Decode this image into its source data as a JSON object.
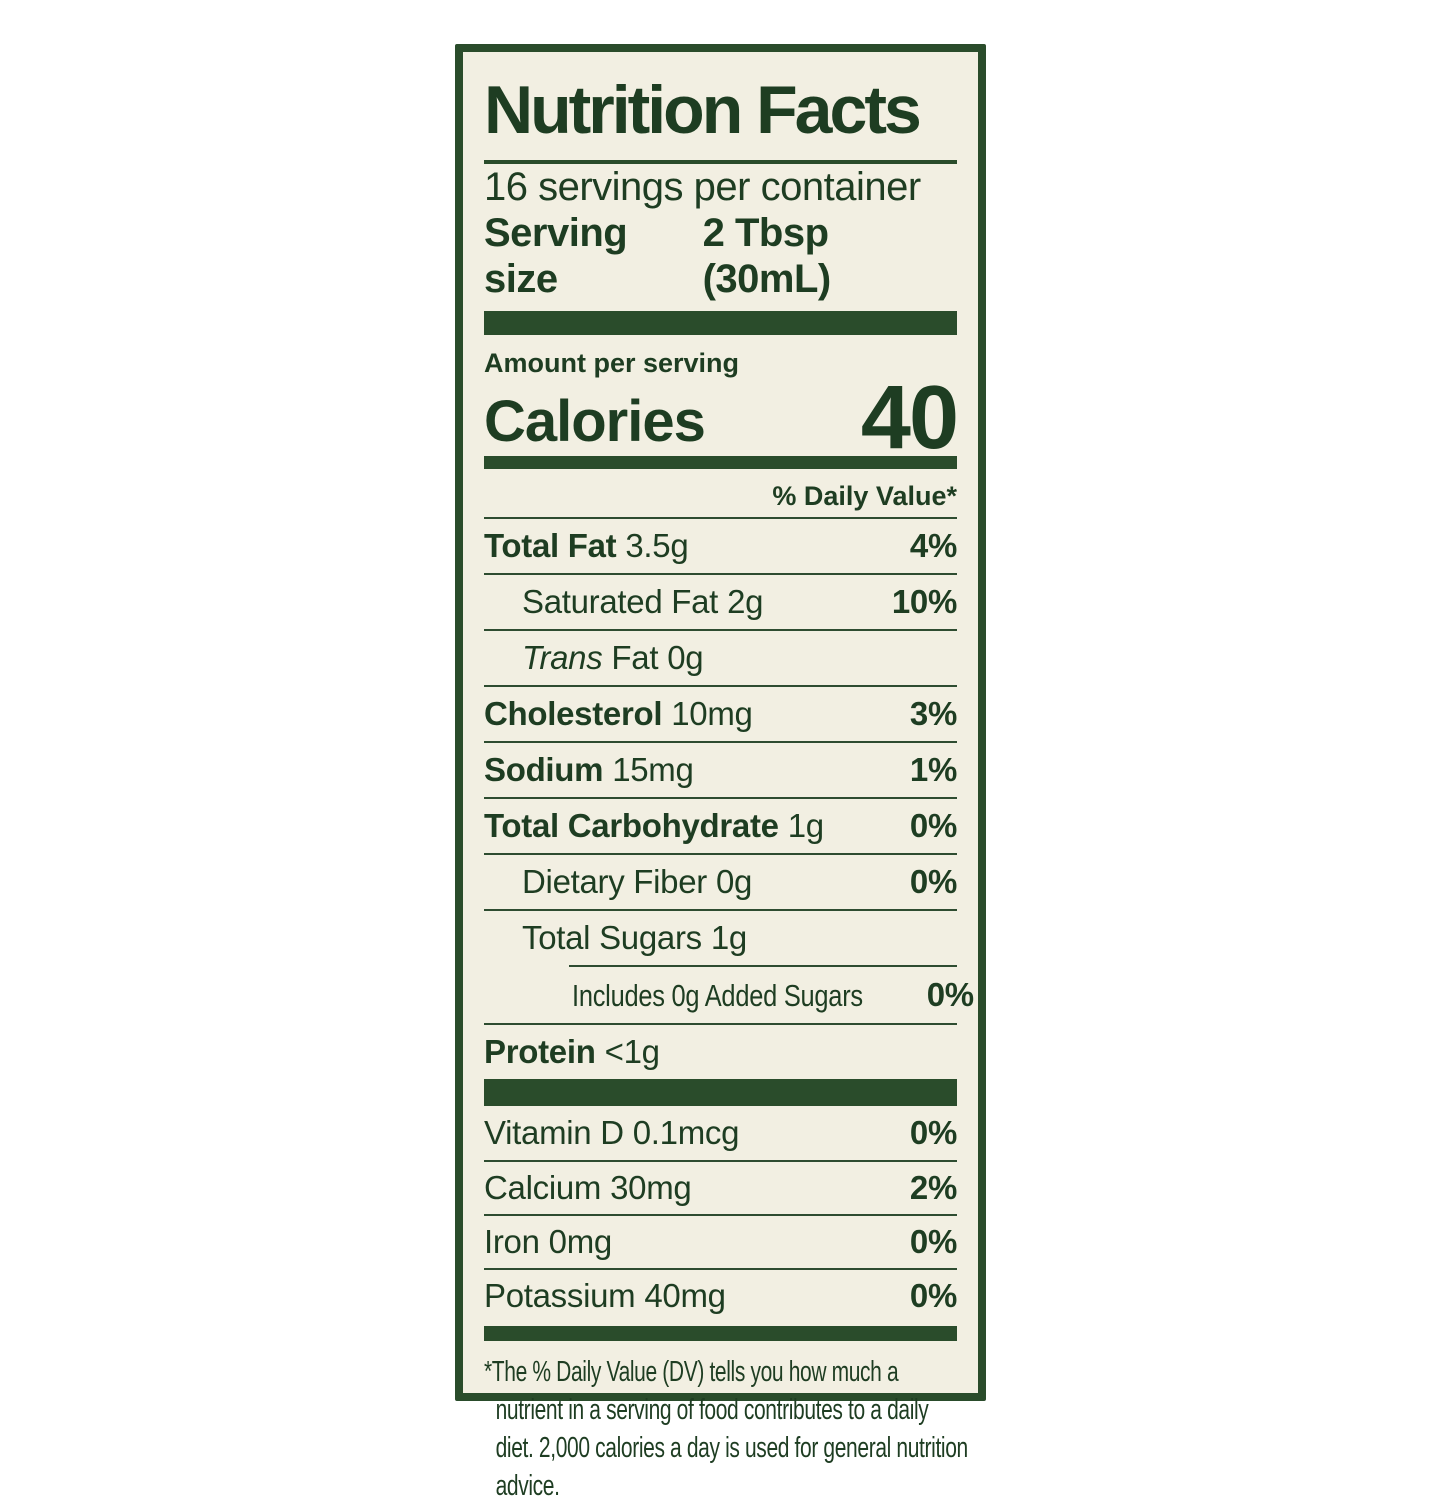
{
  "label": {
    "title": "Nutrition Facts",
    "servings_per_container": "16 servings per container",
    "serving_size_label": "Serving size",
    "serving_size_value": "2 Tbsp (30mL)",
    "amount_per_serving": "Amount per serving",
    "calories_label": "Calories",
    "calories_value": "40",
    "daily_value_header": "% Daily Value*",
    "nutrients": [
      {
        "name": "Total Fat",
        "amount": "3.5g",
        "dv": "4%"
      },
      {
        "name": "Saturated Fat",
        "amount": "2g",
        "dv": "10%"
      },
      {
        "name_italic": "Trans",
        "name": "Fat",
        "amount": "0g",
        "dv": ""
      },
      {
        "name": "Cholesterol",
        "amount": "10mg",
        "dv": "3%"
      },
      {
        "name": "Sodium",
        "amount": "15mg",
        "dv": "1%"
      },
      {
        "name": "Total Carbohydrate",
        "amount": "1g",
        "dv": "0%"
      },
      {
        "name": "Dietary Fiber",
        "amount": "0g",
        "dv": "0%"
      },
      {
        "name": "Total Sugars",
        "amount": "1g",
        "dv": ""
      },
      {
        "name": "Includes 0g Added Sugars",
        "amount": "",
        "dv": "0%"
      },
      {
        "name": "Protein",
        "amount": "<1g",
        "dv": ""
      }
    ],
    "micronutrients": [
      {
        "name": "Vitamin D",
        "amount": "0.1mcg",
        "dv": "0%"
      },
      {
        "name": "Calcium",
        "amount": "30mg",
        "dv": "2%"
      },
      {
        "name": "Iron",
        "amount": "0mg",
        "dv": "0%"
      },
      {
        "name": "Potassium",
        "amount": "40mg",
        "dv": "0%"
      }
    ],
    "footnote": "*The % Daily Value (DV) tells you how much a nutrient in a serving of food contributes to a daily diet. 2,000 calories a day is used for general nutrition advice."
  },
  "colors": {
    "text": "#1e3d22",
    "accent_bars_border": "#2a4c2b",
    "hairline": "#2e4c30",
    "label_background": "#f2efe2",
    "page_background": "#ffffff"
  }
}
